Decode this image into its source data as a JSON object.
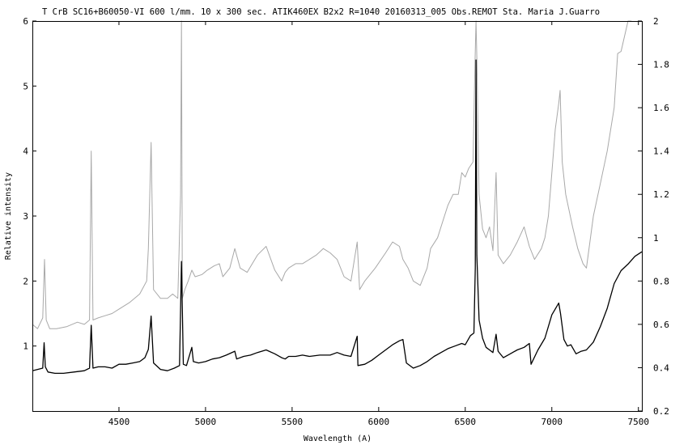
{
  "chart_data": {
    "type": "line",
    "title": "T CrB  SC16+B60050-VI 600 l/mm.  10 x 300 sec. ATIK460EX   B2x2  R=1040    20160313_005  Obs.REMOT   Sta. Maria  J.Guarro",
    "xlabel": "Wavelength (A)",
    "ylabel": "Relative intensity",
    "xlim": [
      4000,
      7520
    ],
    "ylim_left": [
      0,
      6
    ],
    "ylim_right": [
      0.2,
      2
    ],
    "x_ticks": [
      4500,
      5000,
      5500,
      6000,
      6500,
      7000,
      7500
    ],
    "y_ticks_left": [
      1,
      2,
      3,
      4,
      5,
      6
    ],
    "y_ticks_right": [
      0.2,
      0.4,
      0.6,
      0.8,
      1,
      1.2,
      1.4,
      1.6,
      1.8,
      2
    ],
    "grid": false,
    "legend": "none",
    "series": [
      {
        "axis": "right",
        "color": "#a8a8a8",
        "x": [
          4000,
          4030,
          4060,
          4070,
          4080,
          4100,
          4140,
          4200,
          4260,
          4300,
          4330,
          4340,
          4350,
          4380,
          4420,
          4460,
          4500,
          4560,
          4620,
          4660,
          4670,
          4686,
          4700,
          4740,
          4780,
          4810,
          4840,
          4856,
          4861,
          4866,
          4880,
          4900,
          4921,
          4940,
          4980,
          5010,
          5050,
          5080,
          5100,
          5140,
          5169,
          5200,
          5240,
          5270,
          5300,
          5350,
          5400,
          5440,
          5460,
          5480,
          5520,
          5560,
          5600,
          5640,
          5680,
          5720,
          5760,
          5800,
          5840,
          5876,
          5890,
          5920,
          5980,
          6040,
          6080,
          6120,
          6140,
          6170,
          6200,
          6240,
          6280,
          6300,
          6340,
          6380,
          6400,
          6430,
          6460,
          6480,
          6500,
          6520,
          6545,
          6556,
          6562,
          6568,
          6580,
          6600,
          6620,
          6640,
          6660,
          6678,
          6690,
          6720,
          6760,
          6800,
          6840,
          6870,
          6900,
          6940,
          6960,
          6980,
          7000,
          7020,
          7040,
          7048,
          7060,
          7080,
          7120,
          7150,
          7180,
          7200,
          7240,
          7280,
          7320,
          7360,
          7380,
          7400,
          7440,
          7460
        ],
        "y": [
          0.6,
          0.58,
          0.63,
          0.9,
          0.62,
          0.58,
          0.58,
          0.59,
          0.61,
          0.6,
          0.62,
          1.4,
          0.62,
          0.63,
          0.64,
          0.65,
          0.67,
          0.7,
          0.74,
          0.8,
          0.95,
          1.44,
          0.76,
          0.72,
          0.72,
          0.74,
          0.72,
          1.2,
          2.0,
          0.72,
          0.76,
          0.8,
          0.85,
          0.82,
          0.83,
          0.85,
          0.87,
          0.88,
          0.82,
          0.86,
          0.95,
          0.86,
          0.84,
          0.88,
          0.92,
          0.96,
          0.85,
          0.8,
          0.84,
          0.86,
          0.88,
          0.88,
          0.9,
          0.92,
          0.95,
          0.93,
          0.9,
          0.82,
          0.8,
          0.98,
          0.76,
          0.8,
          0.86,
          0.93,
          0.98,
          0.96,
          0.9,
          0.86,
          0.8,
          0.78,
          0.86,
          0.95,
          1.0,
          1.1,
          1.15,
          1.2,
          1.2,
          1.3,
          1.28,
          1.32,
          1.35,
          1.8,
          2.0,
          1.8,
          1.2,
          1.04,
          1.0,
          1.05,
          0.94,
          1.3,
          0.92,
          0.88,
          0.92,
          0.98,
          1.05,
          0.96,
          0.9,
          0.95,
          1.0,
          1.1,
          1.3,
          1.5,
          1.62,
          1.68,
          1.35,
          1.2,
          1.05,
          0.95,
          0.88,
          0.86,
          1.1,
          1.25,
          1.4,
          1.6,
          1.85,
          1.86,
          2.0,
          2.0
        ]
      },
      {
        "axis": "left",
        "color": "#000000",
        "x": [
          4000,
          4030,
          4060,
          4068,
          4075,
          4090,
          4130,
          4180,
          4240,
          4300,
          4330,
          4340,
          4350,
          4380,
          4420,
          4460,
          4500,
          4540,
          4580,
          4620,
          4650,
          4670,
          4686,
          4700,
          4740,
          4780,
          4820,
          4850,
          4861,
          4872,
          4890,
          4921,
          4930,
          4960,
          5000,
          5040,
          5080,
          5120,
          5169,
          5180,
          5220,
          5260,
          5300,
          5350,
          5400,
          5440,
          5460,
          5480,
          5520,
          5560,
          5600,
          5660,
          5720,
          5760,
          5800,
          5840,
          5876,
          5880,
          5920,
          5960,
          6000,
          6040,
          6080,
          6120,
          6140,
          6160,
          6200,
          6240,
          6280,
          6320,
          6360,
          6400,
          6440,
          6480,
          6500,
          6530,
          6550,
          6558,
          6562,
          6567,
          6580,
          6600,
          6620,
          6640,
          6660,
          6678,
          6690,
          6720,
          6760,
          6800,
          6840,
          6870,
          6880,
          6920,
          6960,
          7000,
          7040,
          7050,
          7070,
          7090,
          7110,
          7140,
          7170,
          7200,
          7240,
          7280,
          7320,
          7360,
          7400,
          7440,
          7480,
          7520
        ],
        "y": [
          0.62,
          0.64,
          0.66,
          1.05,
          0.68,
          0.6,
          0.58,
          0.58,
          0.6,
          0.62,
          0.66,
          1.32,
          0.66,
          0.68,
          0.68,
          0.66,
          0.72,
          0.72,
          0.74,
          0.76,
          0.82,
          0.95,
          1.46,
          0.74,
          0.64,
          0.62,
          0.66,
          0.7,
          2.3,
          0.72,
          0.7,
          0.98,
          0.76,
          0.74,
          0.76,
          0.8,
          0.82,
          0.86,
          0.92,
          0.8,
          0.84,
          0.86,
          0.9,
          0.94,
          0.88,
          0.82,
          0.8,
          0.84,
          0.84,
          0.86,
          0.84,
          0.86,
          0.86,
          0.9,
          0.86,
          0.84,
          1.15,
          0.7,
          0.72,
          0.78,
          0.86,
          0.94,
          1.02,
          1.08,
          1.1,
          0.74,
          0.66,
          0.7,
          0.76,
          0.84,
          0.9,
          0.96,
          1.0,
          1.04,
          1.02,
          1.16,
          1.2,
          2.2,
          5.4,
          2.4,
          1.4,
          1.12,
          0.98,
          0.94,
          0.9,
          1.18,
          0.92,
          0.82,
          0.88,
          0.94,
          0.98,
          1.04,
          0.72,
          0.94,
          1.12,
          1.48,
          1.66,
          1.5,
          1.1,
          1.0,
          1.02,
          0.88,
          0.92,
          0.94,
          1.06,
          1.3,
          1.58,
          1.96,
          2.16,
          2.26,
          2.38,
          2.45
        ]
      }
    ]
  }
}
